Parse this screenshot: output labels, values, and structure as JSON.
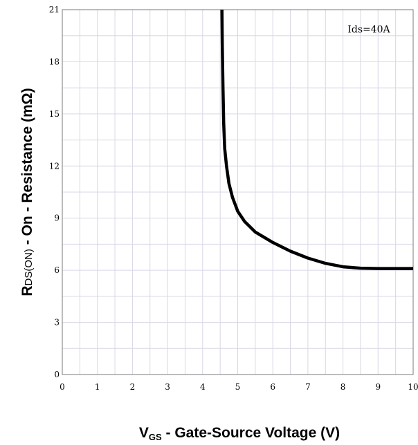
{
  "chart_data": {
    "type": "line",
    "xlabel": {
      "main": "V",
      "sub": "GS",
      "rest": " - Gate-Source Voltage (V)"
    },
    "ylabel": {
      "main": "R",
      "sub": "DS(ON)",
      "rest": " - On - Resistance (mΩ)"
    },
    "xlim": [
      0,
      10
    ],
    "ylim": [
      0,
      21
    ],
    "xticks": [
      0,
      1,
      2,
      3,
      4,
      5,
      6,
      7,
      8,
      9,
      10
    ],
    "yticks": [
      0,
      3,
      6,
      9,
      12,
      15,
      18,
      21
    ],
    "grid": true,
    "annotation": "Ids=40A",
    "series": [
      {
        "color": "#000000",
        "x": [
          4.55,
          4.56,
          4.58,
          4.6,
          4.63,
          4.68,
          4.75,
          4.85,
          5.0,
          5.2,
          5.5,
          6.0,
          6.5,
          7.0,
          7.5,
          8.0,
          8.5,
          9.0,
          9.5,
          10.0
        ],
        "y": [
          21.0,
          19.0,
          16.5,
          14.5,
          13.0,
          12.0,
          11.0,
          10.2,
          9.4,
          8.8,
          8.2,
          7.6,
          7.1,
          6.7,
          6.4,
          6.2,
          6.12,
          6.1,
          6.1,
          6.1
        ]
      }
    ]
  }
}
